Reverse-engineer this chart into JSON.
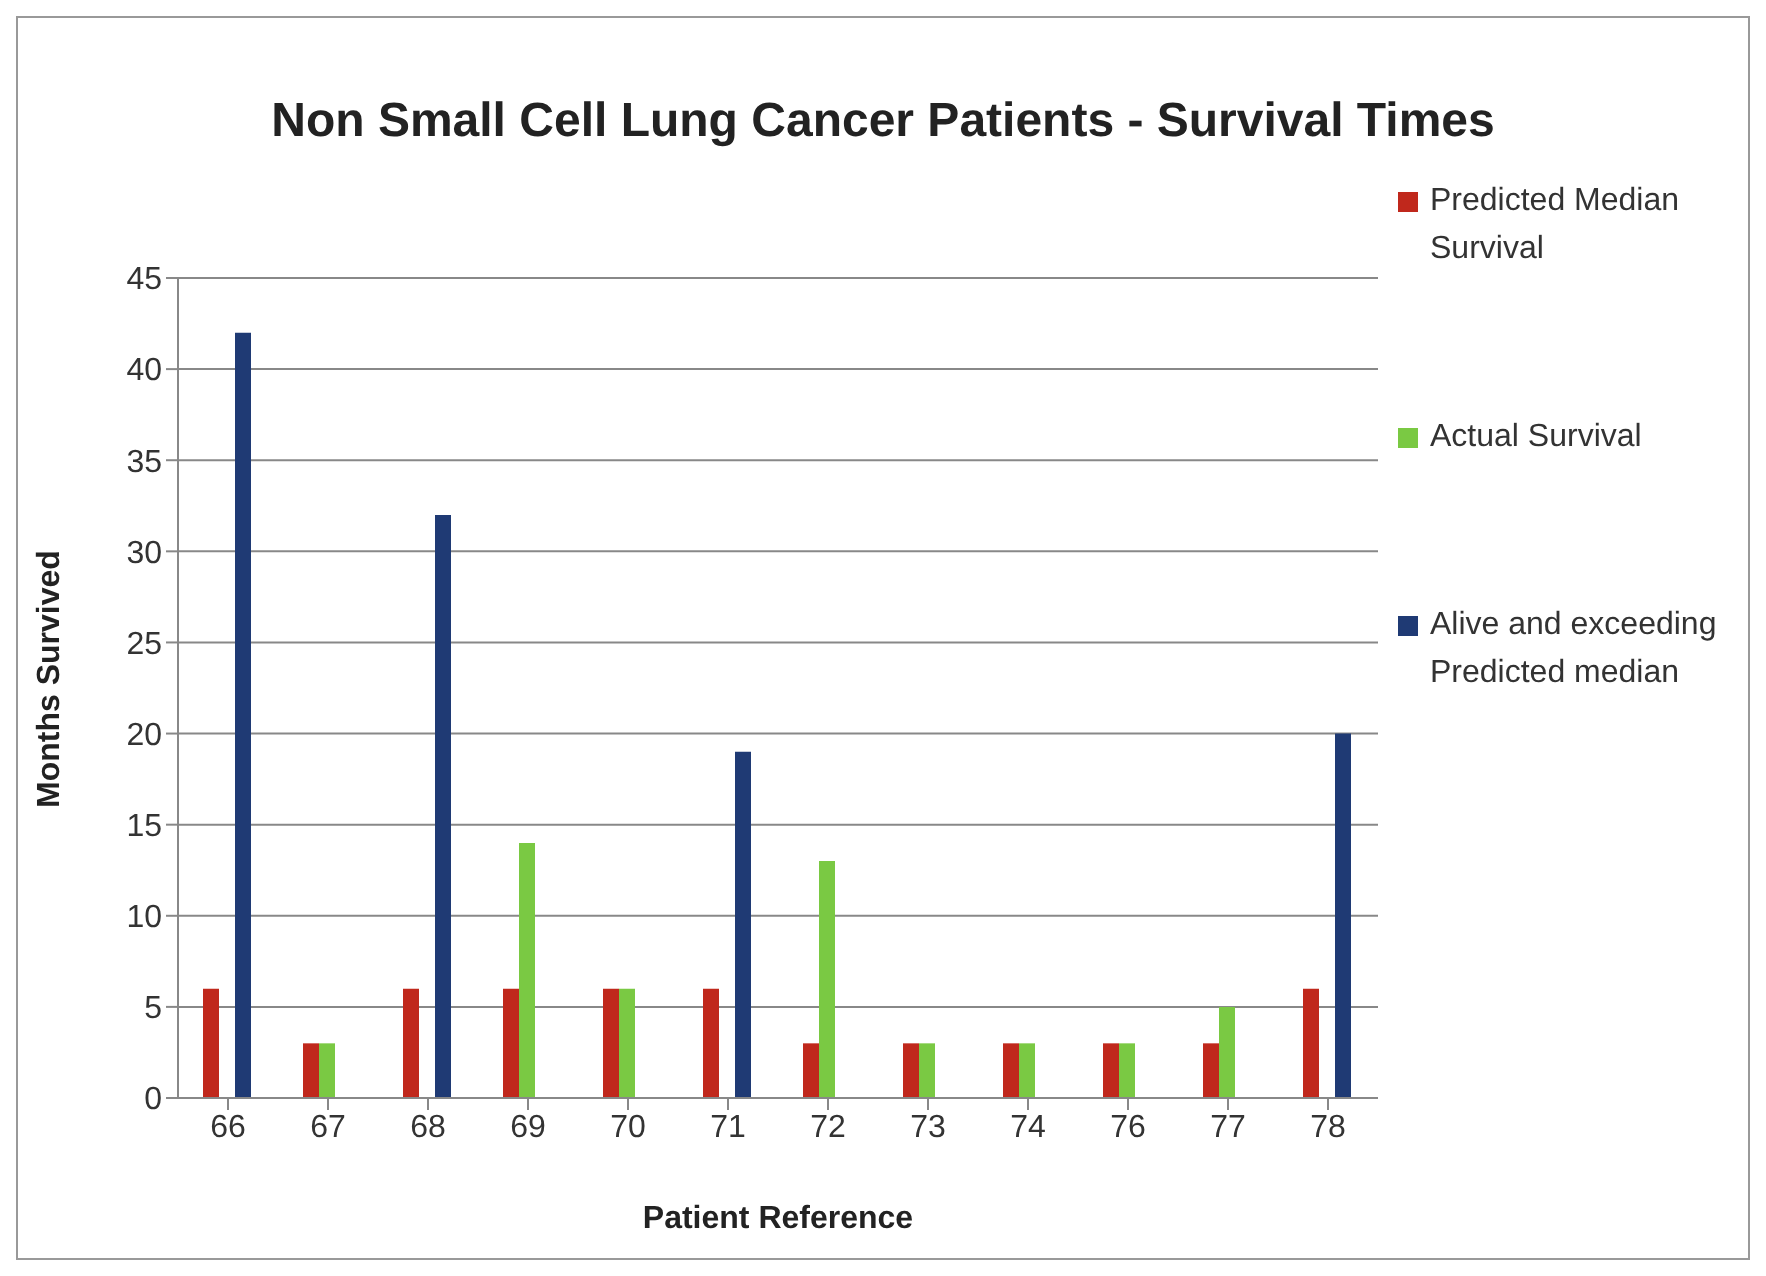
{
  "chart_data": {
    "type": "bar",
    "title": "Non Small Cell Lung Cancer Patients - Survival Times",
    "xlabel": "Patient Reference",
    "ylabel": "Months Survived",
    "categories": [
      "66",
      "67",
      "68",
      "69",
      "70",
      "71",
      "72",
      "73",
      "74",
      "76",
      "77",
      "78"
    ],
    "series": [
      {
        "name": "Predicted Median Survival",
        "color": "#c0281c",
        "values": [
          6,
          3,
          6,
          6,
          6,
          6,
          3,
          3,
          3,
          3,
          3,
          6
        ]
      },
      {
        "name": "Actual Survival",
        "color": "#7ac943",
        "values": [
          null,
          3,
          null,
          14,
          6,
          null,
          13,
          3,
          3,
          3,
          5,
          null
        ]
      },
      {
        "name": "Alive and exceeding Predicted median",
        "color": "#1f3a74",
        "values": [
          42,
          null,
          32,
          null,
          null,
          19,
          null,
          null,
          null,
          null,
          null,
          20
        ]
      }
    ],
    "ylim": [
      0,
      45
    ],
    "yticks": [
      0,
      5,
      10,
      15,
      20,
      25,
      30,
      35,
      40,
      45
    ],
    "grid": "y",
    "legend": "right"
  }
}
